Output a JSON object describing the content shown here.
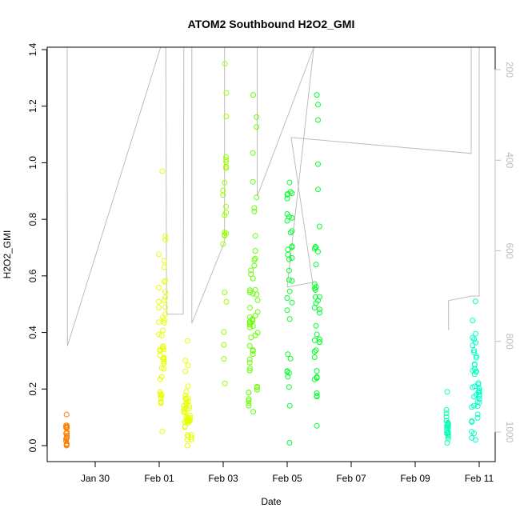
{
  "chart_data": {
    "type": "scatter",
    "title": "ATOM2 Southbound H2O2_GMI",
    "xlabel": "Date",
    "ylabel": "H2O2_GMI",
    "xlim": [
      "2017-01-28T12:00",
      "2017-02-11T12:00"
    ],
    "ylim": [
      0,
      1.4
    ],
    "y_ticks": [
      "0.0",
      "0.2",
      "0.4",
      "0.6",
      "0.8",
      "1.0",
      "1.2",
      "1.4"
    ],
    "x_ticks": [
      "Jan 30",
      "Feb 01",
      "Feb 03",
      "Feb 05",
      "Feb 07",
      "Feb 09",
      "Feb 11"
    ],
    "x_tick_dates": [
      "2017-01-30",
      "2017-02-01",
      "2017-02-03",
      "2017-02-05",
      "2017-02-07",
      "2017-02-09",
      "2017-02-11"
    ],
    "secondary_y": {
      "ticks": [
        "200",
        "400",
        "600",
        "800",
        "1000"
      ],
      "reversed": true,
      "range": [
        100,
        1050
      ],
      "color": "#bdbdbd"
    },
    "series": [
      {
        "color": "#ff7f00",
        "flights": [
          {
            "start": "2017-01-29T02:00",
            "end": "2017-01-29T03:00",
            "y_min": 0.0,
            "y_max": 0.11
          }
        ]
      },
      {
        "color": "#e6ff00",
        "flights": [
          {
            "start": "2017-01-31T23:30",
            "end": "2017-02-01T05:00",
            "y_min": 0.05,
            "y_max": 0.97
          },
          {
            "start": "2017-02-01T18:00",
            "end": "2017-02-02T00:30",
            "y_min": 0.0,
            "y_max": 0.37
          }
        ]
      },
      {
        "color": "#99ff00",
        "flights": [
          {
            "start": "2017-02-02T23:30",
            "end": "2017-02-03T03:00",
            "y_min": 0.22,
            "y_max": 1.35
          }
        ]
      },
      {
        "color": "#66ff00",
        "flights": [
          {
            "start": "2017-02-03T18:30",
            "end": "2017-02-04T02:30",
            "y_min": 0.12,
            "y_max": 1.24
          }
        ]
      },
      {
        "color": "#00ff2a",
        "flights": [
          {
            "start": "2017-02-04T23:30",
            "end": "2017-02-05T04:00",
            "y_min": 0.01,
            "y_max": 0.93
          },
          {
            "start": "2017-02-05T20:00",
            "end": "2017-02-06T00:30",
            "y_min": 0.07,
            "y_max": 1.24
          }
        ]
      },
      {
        "color": "#00ffb3",
        "flights": [
          {
            "start": "2017-02-09T23:00",
            "end": "2017-02-10T01:00",
            "y_min": 0.01,
            "y_max": 0.19
          }
        ]
      },
      {
        "color": "#00ffc8",
        "flights": [
          {
            "start": "2017-02-10T18:00",
            "end": "2017-02-11T00:30",
            "y_min": 0.02,
            "y_max": 0.51
          }
        ]
      }
    ],
    "altitude_trace": [
      {
        "t": "2017-01-29T03:00",
        "p": 100
      },
      {
        "t": "2017-01-29T03:00",
        "p": 250
      },
      {
        "t": "2017-01-29T03:10",
        "p": 810
      },
      {
        "t": "2017-02-01T01:00",
        "p": 100
      },
      {
        "t": "2017-02-01T05:00",
        "p": 100
      },
      {
        "t": "2017-02-01T05:30",
        "p": 740
      },
      {
        "t": "2017-02-01T18:00",
        "p": 740
      },
      {
        "t": "2017-02-01T18:30",
        "p": 100
      },
      {
        "t": "2017-02-02T00:30",
        "p": 100
      },
      {
        "t": "2017-02-02T00:30",
        "p": 760
      },
      {
        "t": "2017-02-03T01:00",
        "p": 580
      },
      {
        "t": "2017-02-03T01:00",
        "p": 100
      },
      {
        "t": "2017-02-03T03:00",
        "p": 100
      },
      {
        "t": "2017-02-03T18:30",
        "p": 100
      },
      {
        "t": "2017-02-04T01:30",
        "p": 100
      },
      {
        "t": "2017-02-04T01:30",
        "p": 480
      },
      {
        "t": "2017-02-05T20:00",
        "p": 100
      },
      {
        "t": "2017-02-05T00:00",
        "p": 680
      },
      {
        "t": "2017-02-05T19:00",
        "p": 670
      },
      {
        "t": "2017-02-05T03:00",
        "p": 350
      },
      {
        "t": "2017-02-10T18:00",
        "p": 385
      },
      {
        "t": "2017-02-10T18:00",
        "p": 100
      },
      {
        "t": "2017-02-11T00:00",
        "p": 100
      },
      {
        "t": "2017-02-11T00:00",
        "p": 700
      },
      {
        "t": "2017-02-10T18:00",
        "p": 700
      },
      {
        "t": "2017-02-10T01:00",
        "p": 710
      },
      {
        "t": "2017-02-10T01:00",
        "p": 775
      }
    ],
    "grid": false,
    "legend": "none"
  }
}
